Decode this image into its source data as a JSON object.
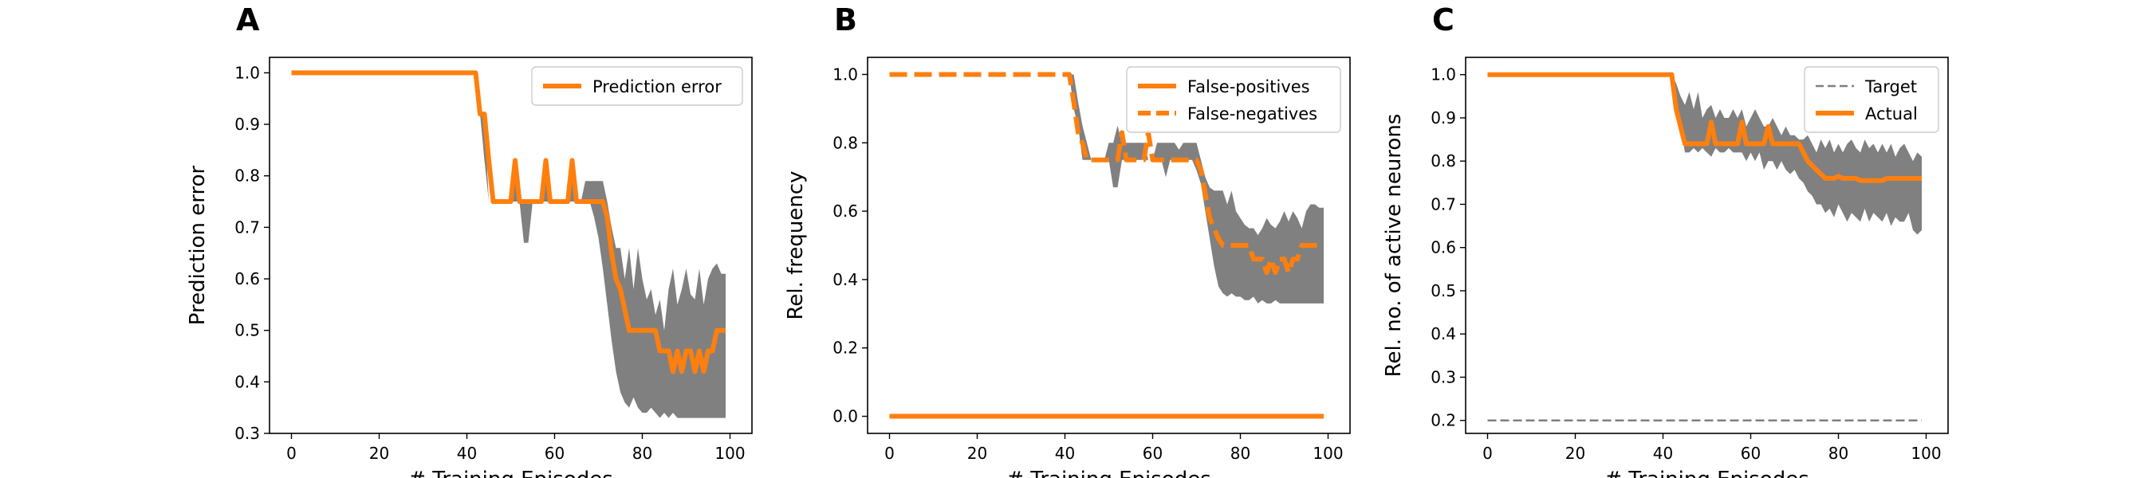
{
  "chart_data": [
    {
      "id": "A",
      "panel_letter": "A",
      "type": "line",
      "xlabel": "# Training Episodes",
      "ylabel": "Prediction error",
      "xlim": [
        -5,
        105
      ],
      "ylim": [
        0.3,
        1.03
      ],
      "xticks": [
        0,
        20,
        40,
        60,
        80,
        100
      ],
      "yticks": [
        0.3,
        0.4,
        0.5,
        0.6,
        0.7,
        0.8,
        0.9,
        1.0
      ],
      "ytick_labels": [
        "0.3",
        "0.4",
        "0.5",
        "0.6",
        "0.7",
        "0.8",
        "0.9",
        "1.0"
      ],
      "legend_position": "top-right",
      "band": {
        "x": [
          0,
          42,
          43,
          44,
          45,
          46,
          47,
          48,
          49,
          50,
          51,
          52,
          53,
          54,
          55,
          56,
          57,
          58,
          59,
          60,
          61,
          62,
          63,
          64,
          65,
          66,
          67,
          68,
          69,
          70,
          71,
          72,
          73,
          74,
          75,
          76,
          77,
          78,
          79,
          80,
          81,
          82,
          83,
          84,
          85,
          86,
          87,
          88,
          89,
          90,
          91,
          92,
          93,
          94,
          95,
          96,
          97,
          98,
          99
        ],
        "lower": [
          1.0,
          1.0,
          0.92,
          0.83,
          0.75,
          0.75,
          0.75,
          0.75,
          0.75,
          0.75,
          0.75,
          0.75,
          0.67,
          0.67,
          0.75,
          0.75,
          0.75,
          0.75,
          0.75,
          0.75,
          0.75,
          0.75,
          0.75,
          0.75,
          0.75,
          0.75,
          0.75,
          0.75,
          0.72,
          0.68,
          0.62,
          0.55,
          0.48,
          0.42,
          0.38,
          0.36,
          0.35,
          0.37,
          0.35,
          0.34,
          0.34,
          0.35,
          0.34,
          0.33,
          0.34,
          0.33,
          0.34,
          0.33,
          0.33,
          0.33,
          0.33,
          0.33,
          0.33,
          0.33,
          0.33,
          0.33,
          0.33,
          0.33,
          0.33
        ],
        "upper": [
          1.0,
          1.0,
          0.92,
          0.92,
          0.75,
          0.75,
          0.75,
          0.75,
          0.75,
          0.75,
          0.83,
          0.75,
          0.75,
          0.75,
          0.75,
          0.75,
          0.75,
          0.83,
          0.75,
          0.75,
          0.75,
          0.75,
          0.75,
          0.83,
          0.75,
          0.75,
          0.79,
          0.79,
          0.79,
          0.79,
          0.79,
          0.75,
          0.7,
          0.66,
          0.66,
          0.6,
          0.66,
          0.58,
          0.66,
          0.6,
          0.56,
          0.58,
          0.53,
          0.56,
          0.5,
          0.58,
          0.62,
          0.55,
          0.58,
          0.62,
          0.57,
          0.56,
          0.62,
          0.55,
          0.6,
          0.62,
          0.63,
          0.61,
          0.61
        ]
      },
      "series": [
        {
          "name": "Prediction error",
          "style": "solid",
          "color": "#ff7f0e",
          "x": [
            0,
            42,
            43,
            44,
            45,
            46,
            47,
            48,
            49,
            50,
            51,
            52,
            53,
            54,
            55,
            56,
            57,
            58,
            59,
            60,
            61,
            62,
            63,
            64,
            65,
            66,
            67,
            68,
            69,
            70,
            71,
            72,
            73,
            74,
            75,
            76,
            77,
            78,
            79,
            80,
            81,
            82,
            83,
            84,
            85,
            86,
            87,
            88,
            89,
            90,
            91,
            92,
            93,
            94,
            95,
            96,
            97,
            98,
            99
          ],
          "y": [
            1.0,
            1.0,
            0.92,
            0.92,
            0.83,
            0.75,
            0.75,
            0.75,
            0.75,
            0.75,
            0.83,
            0.75,
            0.75,
            0.75,
            0.75,
            0.75,
            0.75,
            0.83,
            0.75,
            0.75,
            0.75,
            0.75,
            0.75,
            0.83,
            0.75,
            0.75,
            0.75,
            0.75,
            0.75,
            0.75,
            0.75,
            0.72,
            0.65,
            0.6,
            0.58,
            0.54,
            0.5,
            0.5,
            0.5,
            0.5,
            0.5,
            0.5,
            0.5,
            0.46,
            0.46,
            0.46,
            0.42,
            0.46,
            0.42,
            0.46,
            0.46,
            0.42,
            0.46,
            0.42,
            0.46,
            0.46,
            0.5,
            0.5,
            0.5
          ]
        }
      ]
    },
    {
      "id": "B",
      "panel_letter": "B",
      "type": "line",
      "xlabel": "# Training Episodes",
      "ylabel": "Rel. frequency",
      "xlim": [
        -5,
        105
      ],
      "ylim": [
        -0.05,
        1.05
      ],
      "xticks": [
        0,
        20,
        40,
        60,
        80,
        100
      ],
      "yticks": [
        0.0,
        0.2,
        0.4,
        0.6,
        0.8,
        1.0
      ],
      "ytick_labels": [
        "0.0",
        "0.2",
        "0.4",
        "0.6",
        "0.8",
        "1.0"
      ],
      "legend_position": "top-right",
      "band": {
        "x": [
          0,
          41,
          42,
          43,
          44,
          45,
          46,
          47,
          48,
          49,
          50,
          51,
          52,
          53,
          54,
          55,
          56,
          57,
          58,
          59,
          60,
          61,
          62,
          63,
          64,
          65,
          66,
          67,
          68,
          69,
          70,
          71,
          72,
          73,
          74,
          75,
          76,
          77,
          78,
          79,
          80,
          81,
          82,
          83,
          84,
          85,
          86,
          87,
          88,
          89,
          90,
          91,
          92,
          93,
          94,
          95,
          96,
          97,
          98,
          99
        ],
        "lower": [
          1.0,
          1.0,
          0.9,
          0.85,
          0.75,
          0.75,
          0.75,
          0.75,
          0.75,
          0.75,
          0.75,
          0.67,
          0.67,
          0.75,
          0.75,
          0.75,
          0.75,
          0.75,
          0.75,
          0.75,
          0.75,
          0.75,
          0.75,
          0.7,
          0.75,
          0.75,
          0.75,
          0.75,
          0.75,
          0.75,
          0.72,
          0.68,
          0.6,
          0.52,
          0.44,
          0.38,
          0.36,
          0.35,
          0.36,
          0.35,
          0.35,
          0.34,
          0.34,
          0.35,
          0.33,
          0.34,
          0.33,
          0.33,
          0.34,
          0.33,
          0.33,
          0.33,
          0.33,
          0.33,
          0.33,
          0.33,
          0.33,
          0.33,
          0.33,
          0.33
        ],
        "upper": [
          1.0,
          1.0,
          1.0,
          0.92,
          0.85,
          0.8,
          0.75,
          0.75,
          0.75,
          0.75,
          0.8,
          0.8,
          0.85,
          0.8,
          0.8,
          0.8,
          0.8,
          0.8,
          0.8,
          0.75,
          0.75,
          0.8,
          0.8,
          0.8,
          0.8,
          0.8,
          0.78,
          0.8,
          0.8,
          0.8,
          0.8,
          0.75,
          0.7,
          0.67,
          0.66,
          0.66,
          0.66,
          0.62,
          0.66,
          0.6,
          0.58,
          0.56,
          0.55,
          0.55,
          0.53,
          0.55,
          0.58,
          0.56,
          0.55,
          0.57,
          0.6,
          0.57,
          0.6,
          0.58,
          0.55,
          0.6,
          0.62,
          0.62,
          0.61,
          0.61
        ]
      },
      "series": [
        {
          "name": "False-positives",
          "style": "solid",
          "color": "#ff7f0e",
          "x": [
            0,
            99
          ],
          "y": [
            0.0,
            0.0
          ]
        },
        {
          "name": "False-negatives",
          "style": "dashed",
          "color": "#ff7f0e",
          "x": [
            0,
            41,
            42,
            43,
            44,
            45,
            46,
            47,
            48,
            49,
            50,
            51,
            52,
            53,
            54,
            55,
            56,
            57,
            58,
            59,
            60,
            61,
            62,
            63,
            64,
            65,
            66,
            67,
            68,
            69,
            70,
            71,
            72,
            73,
            74,
            75,
            76,
            77,
            78,
            79,
            80,
            81,
            82,
            83,
            84,
            85,
            86,
            87,
            88,
            89,
            90,
            91,
            92,
            93,
            94,
            95,
            96,
            97,
            98,
            99
          ],
          "y": [
            1.0,
            1.0,
            0.92,
            0.83,
            0.8,
            0.75,
            0.75,
            0.75,
            0.75,
            0.75,
            0.75,
            0.75,
            0.75,
            0.83,
            0.75,
            0.75,
            0.75,
            0.75,
            0.75,
            0.83,
            0.75,
            0.75,
            0.75,
            0.75,
            0.75,
            0.75,
            0.75,
            0.75,
            0.75,
            0.75,
            0.75,
            0.72,
            0.65,
            0.58,
            0.55,
            0.52,
            0.5,
            0.5,
            0.5,
            0.5,
            0.5,
            0.5,
            0.5,
            0.46,
            0.46,
            0.46,
            0.42,
            0.46,
            0.42,
            0.46,
            0.46,
            0.42,
            0.46,
            0.46,
            0.5,
            0.5,
            0.5,
            0.5,
            0.5,
            0.5
          ]
        }
      ]
    },
    {
      "id": "C",
      "panel_letter": "C",
      "type": "line",
      "xlabel": "# Training Episodes",
      "ylabel": "Rel. no. of active neurons",
      "xlim": [
        -5,
        105
      ],
      "ylim": [
        0.17,
        1.04
      ],
      "xticks": [
        0,
        20,
        40,
        60,
        80,
        100
      ],
      "yticks": [
        0.2,
        0.3,
        0.4,
        0.5,
        0.6,
        0.7,
        0.8,
        0.9,
        1.0
      ],
      "ytick_labels": [
        "0.2",
        "0.3",
        "0.4",
        "0.5",
        "0.6",
        "0.7",
        "0.8",
        "0.9",
        "1.0"
      ],
      "legend_position": "top-right",
      "band": {
        "x": [
          0,
          42,
          43,
          44,
          45,
          46,
          47,
          48,
          49,
          50,
          51,
          52,
          53,
          54,
          55,
          56,
          57,
          58,
          59,
          60,
          61,
          62,
          63,
          64,
          65,
          66,
          67,
          68,
          69,
          70,
          71,
          72,
          73,
          74,
          75,
          76,
          77,
          78,
          79,
          80,
          81,
          82,
          83,
          84,
          85,
          86,
          87,
          88,
          89,
          90,
          91,
          92,
          93,
          94,
          95,
          96,
          97,
          98,
          99
        ],
        "lower": [
          1.0,
          1.0,
          0.92,
          0.88,
          0.82,
          0.82,
          0.83,
          0.82,
          0.83,
          0.82,
          0.81,
          0.83,
          0.82,
          0.82,
          0.83,
          0.82,
          0.82,
          0.82,
          0.8,
          0.82,
          0.8,
          0.82,
          0.78,
          0.8,
          0.8,
          0.78,
          0.8,
          0.78,
          0.77,
          0.78,
          0.76,
          0.75,
          0.73,
          0.72,
          0.7,
          0.7,
          0.68,
          0.69,
          0.67,
          0.7,
          0.68,
          0.66,
          0.68,
          0.67,
          0.66,
          0.69,
          0.66,
          0.68,
          0.67,
          0.66,
          0.68,
          0.65,
          0.67,
          0.66,
          0.66,
          0.68,
          0.64,
          0.63,
          0.64
        ],
        "upper": [
          1.0,
          1.0,
          0.98,
          0.95,
          0.93,
          0.96,
          0.92,
          0.96,
          0.9,
          0.92,
          0.93,
          0.9,
          0.92,
          0.9,
          0.9,
          0.92,
          0.9,
          0.92,
          0.88,
          0.9,
          0.92,
          0.9,
          0.88,
          0.88,
          0.9,
          0.88,
          0.86,
          0.88,
          0.86,
          0.86,
          0.85,
          0.85,
          0.86,
          0.84,
          0.82,
          0.85,
          0.83,
          0.85,
          0.82,
          0.84,
          0.82,
          0.84,
          0.85,
          0.83,
          0.82,
          0.85,
          0.83,
          0.84,
          0.82,
          0.84,
          0.82,
          0.84,
          0.81,
          0.83,
          0.84,
          0.82,
          0.8,
          0.82,
          0.81
        ]
      },
      "series": [
        {
          "name": "Target",
          "style": "dashed-thin",
          "color": "#7f7f7f",
          "x": [
            0,
            99
          ],
          "y": [
            0.2,
            0.2
          ]
        },
        {
          "name": "Actual",
          "style": "solid",
          "color": "#ff7f0e",
          "x": [
            0,
            42,
            43,
            44,
            45,
            46,
            47,
            48,
            49,
            50,
            51,
            52,
            53,
            54,
            55,
            56,
            57,
            58,
            59,
            60,
            61,
            62,
            63,
            64,
            65,
            66,
            67,
            68,
            69,
            70,
            71,
            72,
            73,
            74,
            75,
            76,
            77,
            78,
            79,
            80,
            81,
            82,
            83,
            84,
            85,
            86,
            87,
            88,
            89,
            90,
            91,
            92,
            93,
            94,
            95,
            96,
            97,
            98,
            99
          ],
          "y": [
            1.0,
            1.0,
            0.92,
            0.88,
            0.84,
            0.84,
            0.84,
            0.84,
            0.84,
            0.84,
            0.89,
            0.84,
            0.84,
            0.84,
            0.84,
            0.84,
            0.84,
            0.89,
            0.84,
            0.84,
            0.84,
            0.84,
            0.84,
            0.88,
            0.84,
            0.84,
            0.84,
            0.84,
            0.84,
            0.84,
            0.84,
            0.82,
            0.8,
            0.79,
            0.78,
            0.77,
            0.76,
            0.76,
            0.76,
            0.765,
            0.76,
            0.76,
            0.76,
            0.76,
            0.755,
            0.755,
            0.755,
            0.755,
            0.755,
            0.755,
            0.76,
            0.76,
            0.76,
            0.76,
            0.76,
            0.76,
            0.76,
            0.76,
            0.76
          ]
        }
      ]
    }
  ],
  "colors": {
    "band": "#808080",
    "accent": "#ff7f0e",
    "target": "#7f7f7f"
  }
}
